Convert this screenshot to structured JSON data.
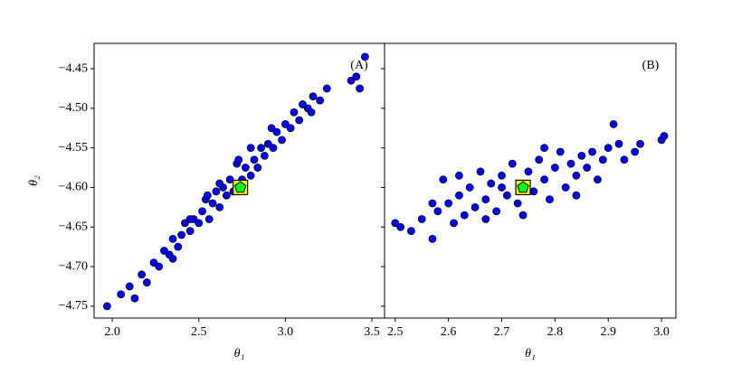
{
  "chart_data": [
    {
      "type": "scatter",
      "annotation": "(A)",
      "xlabel": "θ₁",
      "ylabel": "θ₂",
      "xlim": [
        1.895,
        3.573
      ],
      "ylim": [
        -4.765,
        -4.418
      ],
      "xticks": [
        {
          "value": 2.0,
          "label": "2.0"
        },
        {
          "value": 2.5,
          "label": "2.5"
        },
        {
          "value": 3.0,
          "label": "3.0"
        },
        {
          "value": 3.5,
          "label": "3.5"
        }
      ],
      "yticks": [
        {
          "value": -4.75,
          "label": "−4.75"
        },
        {
          "value": -4.7,
          "label": "−4.70"
        },
        {
          "value": -4.65,
          "label": "−4.65"
        },
        {
          "value": -4.6,
          "label": "−4.60"
        },
        {
          "value": -4.55,
          "label": "−4.55"
        },
        {
          "value": -4.5,
          "label": "−4.50"
        },
        {
          "value": -4.45,
          "label": "−4.45"
        }
      ],
      "series": [
        {
          "marker": "circle",
          "color": "#0000ff",
          "x": [
            1.97,
            2.05,
            2.1,
            2.13,
            2.17,
            2.2,
            2.24,
            2.27,
            2.3,
            2.33,
            2.35,
            2.38,
            2.4,
            2.42,
            2.45,
            2.47,
            2.5,
            2.52,
            2.54,
            2.56,
            2.58,
            2.6,
            2.62,
            2.64,
            2.66,
            2.68,
            2.7,
            2.72,
            2.75,
            2.77,
            2.8,
            2.82,
            2.84,
            2.86,
            2.88,
            2.9,
            2.93,
            2.95,
            2.98,
            3.0,
            3.03,
            3.05,
            3.08,
            3.1,
            3.13,
            3.16,
            3.2,
            3.24,
            2.73,
            2.8,
            2.62,
            2.55,
            2.45,
            3.38,
            3.41,
            3.43,
            3.46,
            2.92,
            3.15,
            2.35
          ],
          "values": [
            -4.75,
            -4.735,
            -4.725,
            -4.74,
            -4.71,
            -4.72,
            -4.695,
            -4.7,
            -4.68,
            -4.685,
            -4.665,
            -4.675,
            -4.66,
            -4.645,
            -4.655,
            -4.64,
            -4.645,
            -4.63,
            -4.615,
            -4.64,
            -4.62,
            -4.605,
            -4.625,
            -4.6,
            -4.61,
            -4.59,
            -4.605,
            -4.57,
            -4.59,
            -4.575,
            -4.585,
            -4.565,
            -4.575,
            -4.55,
            -4.56,
            -4.545,
            -4.55,
            -4.53,
            -4.54,
            -4.52,
            -4.525,
            -4.505,
            -4.515,
            -4.495,
            -4.5,
            -4.485,
            -4.49,
            -4.475,
            -4.565,
            -4.55,
            -4.595,
            -4.61,
            -4.64,
            -4.465,
            -4.46,
            -4.475,
            -4.435,
            -4.525,
            -4.505,
            -4.69
          ]
        },
        {
          "marker": "square",
          "color": "#ffff00",
          "x": [
            2.74
          ],
          "values": [
            -4.6
          ]
        },
        {
          "marker": "pentagon",
          "color": "#00ff00",
          "x": [
            2.74
          ],
          "values": [
            -4.6
          ]
        }
      ]
    },
    {
      "type": "scatter",
      "annotation": "(B)",
      "xlabel": "θ₁",
      "xlim": [
        2.48,
        3.027
      ],
      "ylim": [
        -4.765,
        -4.418
      ],
      "xticks": [
        {
          "value": 2.5,
          "label": "2.5"
        },
        {
          "value": 2.6,
          "label": "2.6"
        },
        {
          "value": 2.7,
          "label": "2.7"
        },
        {
          "value": 2.8,
          "label": "2.8"
        },
        {
          "value": 2.9,
          "label": "2.9"
        },
        {
          "value": 3.0,
          "label": "3.0"
        }
      ],
      "series": [
        {
          "marker": "circle",
          "color": "#0000ff",
          "x": [
            2.5,
            2.51,
            2.53,
            2.55,
            2.57,
            2.58,
            2.59,
            2.6,
            2.61,
            2.62,
            2.63,
            2.64,
            2.65,
            2.66,
            2.67,
            2.68,
            2.69,
            2.7,
            2.71,
            2.72,
            2.73,
            2.75,
            2.76,
            2.77,
            2.78,
            2.79,
            2.8,
            2.81,
            2.82,
            2.83,
            2.84,
            2.85,
            2.86,
            2.87,
            2.88,
            2.89,
            2.9,
            2.91,
            2.92,
            2.93,
            2.95,
            2.96,
            3.0,
            3.005,
            2.67,
            2.74,
            2.62,
            2.78,
            2.7,
            2.84,
            2.57
          ],
          "values": [
            -4.645,
            -4.65,
            -4.655,
            -4.64,
            -4.665,
            -4.63,
            -4.59,
            -4.62,
            -4.645,
            -4.61,
            -4.635,
            -4.6,
            -4.625,
            -4.58,
            -4.615,
            -4.595,
            -4.63,
            -4.585,
            -4.61,
            -4.57,
            -4.62,
            -4.58,
            -4.605,
            -4.565,
            -4.59,
            -4.615,
            -4.575,
            -4.555,
            -4.6,
            -4.57,
            -4.585,
            -4.56,
            -4.575,
            -4.555,
            -4.59,
            -4.565,
            -4.55,
            -4.52,
            -4.545,
            -4.565,
            -4.555,
            -4.545,
            -4.54,
            -4.535,
            -4.64,
            -4.635,
            -4.585,
            -4.55,
            -4.6,
            -4.61,
            -4.62
          ]
        },
        {
          "marker": "square",
          "color": "#ffff00",
          "x": [
            2.74
          ],
          "values": [
            -4.6
          ]
        },
        {
          "marker": "pentagon",
          "color": "#00ff00",
          "x": [
            2.74
          ],
          "values": [
            -4.6
          ]
        }
      ]
    }
  ]
}
